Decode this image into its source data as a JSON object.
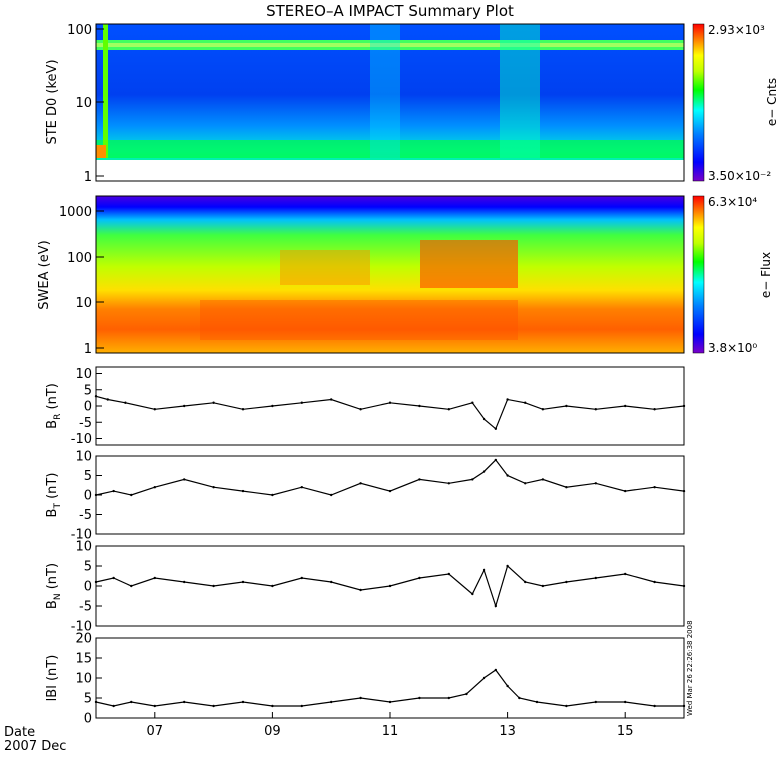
{
  "title": "STEREO–A IMPACT Summary Plot",
  "footer": {
    "date_label": "Date",
    "month_label": "2007 Dec"
  },
  "x_ticks": [
    "07",
    "09",
    "11",
    "13",
    "15"
  ],
  "timestamp": "Wed Mar 26 22:26:38 2008",
  "chart_data": [
    {
      "type": "heatmap",
      "ylabel": "STE D0 (keV)",
      "yscale": "log",
      "ylim": [
        1,
        100
      ],
      "y_ticks": [
        "1",
        "10",
        "100"
      ],
      "colorbar": {
        "max_label": "2.93×10³",
        "min_label": "3.50×10⁻²",
        "label": "e− Cnts",
        "scale": "log"
      },
      "colors": [
        "#7a00c8",
        "#0000ff",
        "#0080ff",
        "#00ffff",
        "#00ff00",
        "#c0ff00",
        "#ffff00",
        "#ff8000",
        "#ff0000"
      ]
    },
    {
      "type": "heatmap",
      "ylabel": "SWEA (eV)",
      "yscale": "log",
      "ylim": [
        1,
        2000
      ],
      "y_ticks": [
        "1",
        "10",
        "100",
        "1000"
      ],
      "colorbar": {
        "max_label": "6.3×10⁴",
        "min_label": "3.8×10⁰",
        "label": "e− Flux",
        "scale": "log"
      }
    },
    {
      "type": "line",
      "ylabel": "B_R (nT)",
      "ylabel_main": "B",
      "ylabel_sub": "R",
      "ylabel_unit": " (nT)",
      "ylim": [
        -12,
        12
      ],
      "y_ticks": [
        10,
        5,
        0,
        -5,
        -10
      ],
      "x": [
        6.0,
        6.2,
        6.5,
        7.0,
        7.5,
        8.0,
        8.5,
        9.0,
        9.5,
        10.0,
        10.5,
        11.0,
        11.5,
        12.0,
        12.4,
        12.6,
        12.8,
        13.0,
        13.3,
        13.6,
        14.0,
        14.5,
        15.0,
        15.5,
        16.0
      ],
      "values": [
        3,
        2,
        1,
        -1,
        0,
        1,
        -1,
        0,
        1,
        2,
        -1,
        1,
        0,
        -1,
        1,
        -4,
        -7,
        2,
        1,
        -1,
        0,
        -1,
        0,
        -1,
        0
      ]
    },
    {
      "type": "line",
      "ylabel": "B_T (nT)",
      "ylabel_main": "B",
      "ylabel_sub": "T",
      "ylabel_unit": " (nT)",
      "ylim": [
        -10,
        10
      ],
      "y_ticks": [
        10,
        5,
        0,
        -5,
        -10
      ],
      "x": [
        6.0,
        6.3,
        6.6,
        7.0,
        7.5,
        8.0,
        8.5,
        9.0,
        9.5,
        10.0,
        10.5,
        11.0,
        11.5,
        12.0,
        12.4,
        12.6,
        12.8,
        13.0,
        13.3,
        13.6,
        14.0,
        14.5,
        15.0,
        15.5,
        16.0
      ],
      "values": [
        0,
        1,
        0,
        2,
        4,
        2,
        1,
        0,
        2,
        0,
        3,
        1,
        4,
        3,
        4,
        6,
        9,
        5,
        3,
        4,
        2,
        3,
        1,
        2,
        1
      ]
    },
    {
      "type": "line",
      "ylabel": "B_N (nT)",
      "ylabel_main": "B",
      "ylabel_sub": "N",
      "ylabel_unit": " (nT)",
      "ylim": [
        -10,
        10
      ],
      "y_ticks": [
        10,
        5,
        0,
        -5,
        -10
      ],
      "x": [
        6.0,
        6.3,
        6.6,
        7.0,
        7.5,
        8.0,
        8.5,
        9.0,
        9.5,
        10.0,
        10.5,
        11.0,
        11.5,
        12.0,
        12.4,
        12.6,
        12.8,
        13.0,
        13.3,
        13.6,
        14.0,
        14.5,
        15.0,
        15.5,
        16.0
      ],
      "values": [
        1,
        2,
        0,
        2,
        1,
        0,
        1,
        0,
        2,
        1,
        -1,
        0,
        2,
        3,
        -2,
        4,
        -5,
        5,
        1,
        0,
        1,
        2,
        3,
        1,
        0
      ]
    },
    {
      "type": "line",
      "ylabel": "|B| (nT)",
      "ylabel_main": "lBl",
      "ylabel_sub": "",
      "ylabel_unit": " (nT)",
      "ylim": [
        0,
        20
      ],
      "y_ticks": [
        20,
        15,
        10,
        5,
        0
      ],
      "x": [
        6.0,
        6.3,
        6.6,
        7.0,
        7.5,
        8.0,
        8.5,
        9.0,
        9.5,
        10.0,
        10.5,
        11.0,
        11.5,
        12.0,
        12.3,
        12.6,
        12.8,
        13.0,
        13.2,
        13.5,
        14.0,
        14.5,
        15.0,
        15.5,
        16.0
      ],
      "values": [
        4,
        3,
        4,
        3,
        4,
        3,
        4,
        3,
        3,
        4,
        5,
        4,
        5,
        5,
        6,
        10,
        12,
        8,
        5,
        4,
        3,
        4,
        4,
        3,
        3
      ]
    }
  ]
}
